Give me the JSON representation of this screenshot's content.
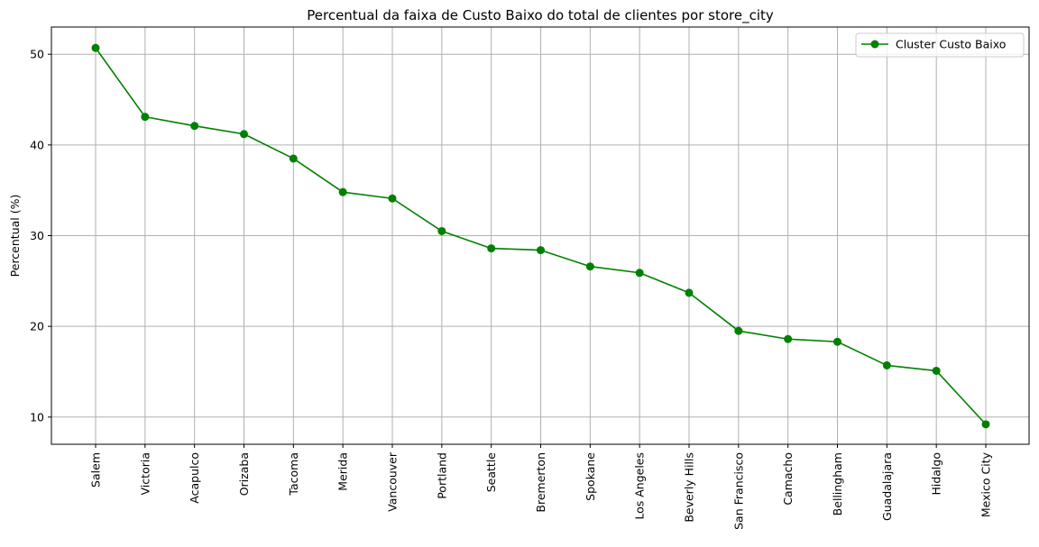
{
  "chart_data": {
    "type": "line",
    "title": "Percentual da faixa de Custo Baixo do total de clientes por store_city",
    "xlabel": "",
    "ylabel": "Percentual (%)",
    "ylim": [
      7.0,
      53.0
    ],
    "yticks": [
      10,
      20,
      30,
      40,
      50
    ],
    "grid": true,
    "legend_position": "top-right",
    "categories": [
      "Salem",
      "Victoria",
      "Acapulco",
      "Orizaba",
      "Tacoma",
      "Merida",
      "Vancouver",
      "Portland",
      "Seattle",
      "Bremerton",
      "Spokane",
      "Los Angeles",
      "Beverly Hills",
      "San Francisco",
      "Camacho",
      "Bellingham",
      "Guadalajara",
      "Hidalgo",
      "Mexico City"
    ],
    "series": [
      {
        "name": "Cluster Custo Baixo",
        "color": "#008000",
        "marker": "circle",
        "values": [
          50.7,
          43.1,
          42.1,
          41.2,
          38.5,
          34.8,
          34.1,
          30.5,
          28.6,
          28.4,
          26.6,
          25.9,
          23.7,
          19.5,
          18.6,
          18.3,
          15.7,
          15.1,
          9.2
        ]
      }
    ]
  }
}
